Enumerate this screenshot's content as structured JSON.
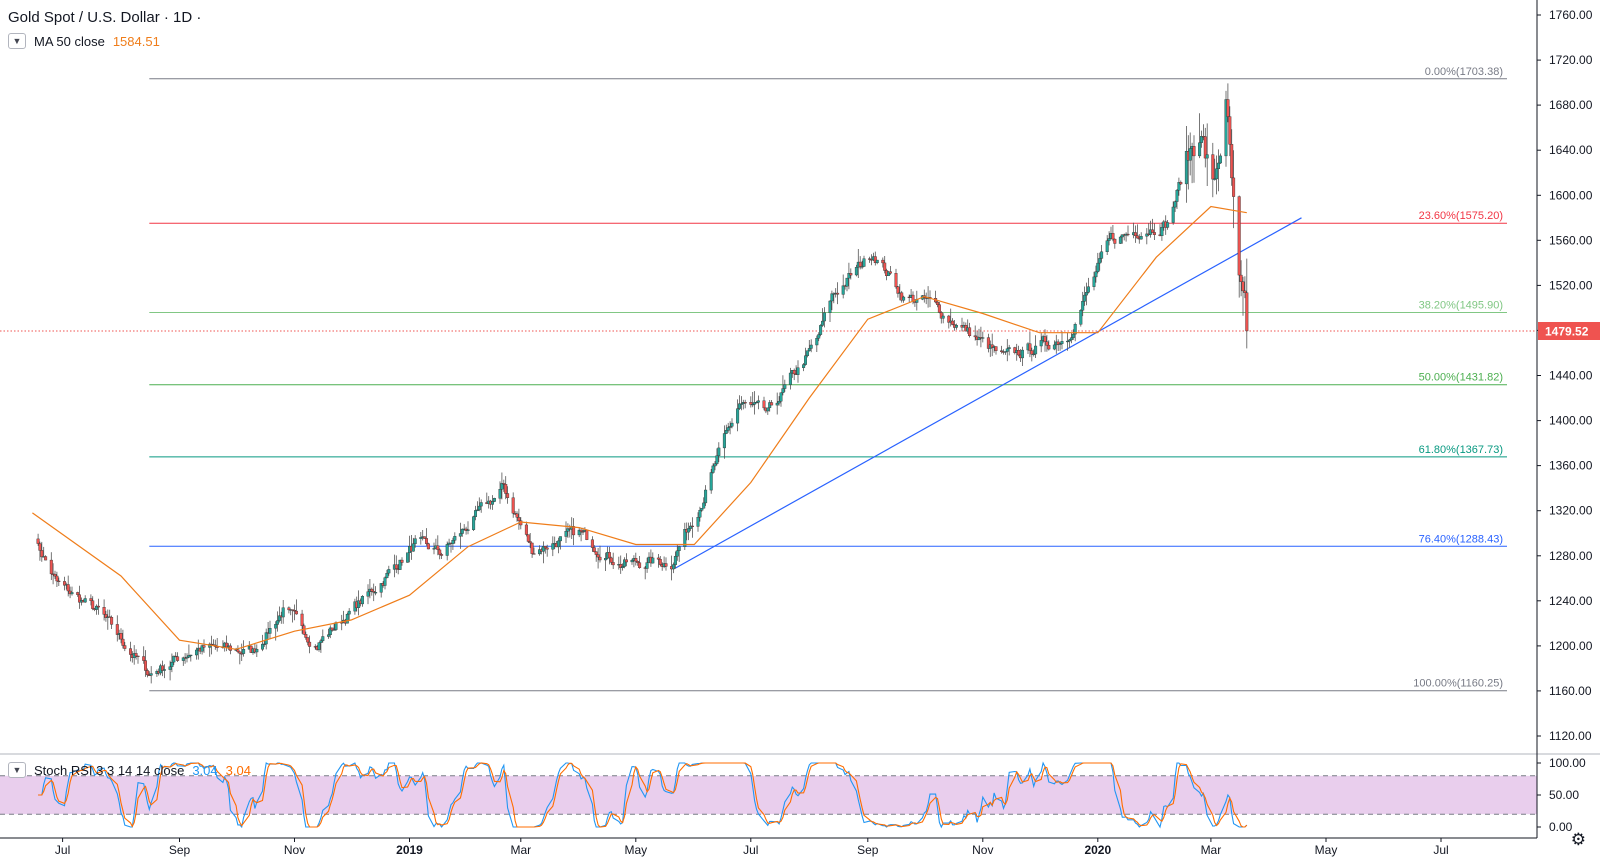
{
  "title": "Gold Spot / U.S. Dollar · 1D ·",
  "ma": {
    "label": "MA 50 close",
    "value": "1584.51",
    "color": "#ef7d1a"
  },
  "stoch": {
    "label": "Stoch RSI 3 3 14 14 close",
    "k": "3.04",
    "d": "3.04",
    "k_color": "#2196f3",
    "d_color": "#ff6d00",
    "band_color": "#e1bee7"
  },
  "current_price": "1479.52",
  "colors": {
    "up": "#26a69a",
    "down": "#ef5350",
    "trend": "#2962ff"
  },
  "chart_data": [
    {
      "type": "candlestick",
      "title": "Gold Spot / U.S. Dollar · 1D ·",
      "y_ticks": [
        "1760.00",
        "1720.00",
        "1680.00",
        "1640.00",
        "1600.00",
        "1560.00",
        "1520.00",
        "1480.00",
        "1440.00",
        "1400.00",
        "1360.00",
        "1320.00",
        "1280.00",
        "1240.00",
        "1200.00",
        "1160.00",
        "1120.00"
      ],
      "ylim": [
        1105,
        1765
      ],
      "x_ticks": [
        "Jul",
        "Sep",
        "Nov",
        "2019",
        "Mar",
        "May",
        "Jul",
        "Sep",
        "Nov",
        "2020",
        "Mar",
        "May",
        "Jul"
      ],
      "price_path": [
        {
          "date": "2018-06-15",
          "close": 1300
        },
        {
          "date": "2018-06-28",
          "close": 1255
        },
        {
          "date": "2018-07-20",
          "close": 1230
        },
        {
          "date": "2018-08-16",
          "close": 1175
        },
        {
          "date": "2018-09-10",
          "close": 1198
        },
        {
          "date": "2018-10-10",
          "close": 1195
        },
        {
          "date": "2018-10-26",
          "close": 1232
        },
        {
          "date": "2018-11-13",
          "close": 1202
        },
        {
          "date": "2018-12-10",
          "close": 1245
        },
        {
          "date": "2019-01-04",
          "close": 1290
        },
        {
          "date": "2019-01-18",
          "close": 1282
        },
        {
          "date": "2019-02-20",
          "close": 1340
        },
        {
          "date": "2019-03-07",
          "close": 1285
        },
        {
          "date": "2019-04-01",
          "close": 1300
        },
        {
          "date": "2019-04-23",
          "close": 1273
        },
        {
          "date": "2019-05-20",
          "close": 1275
        },
        {
          "date": "2019-06-05",
          "close": 1330
        },
        {
          "date": "2019-06-25",
          "close": 1415
        },
        {
          "date": "2019-07-10",
          "close": 1405
        },
        {
          "date": "2019-08-05",
          "close": 1470
        },
        {
          "date": "2019-08-13",
          "close": 1510
        },
        {
          "date": "2019-09-04",
          "close": 1550
        },
        {
          "date": "2019-09-20",
          "close": 1510
        },
        {
          "date": "2019-10-03",
          "close": 1505
        },
        {
          "date": "2019-11-12",
          "close": 1455
        },
        {
          "date": "2019-12-16",
          "close": 1475
        },
        {
          "date": "2020-01-08",
          "close": 1560
        },
        {
          "date": "2020-01-24",
          "close": 1570
        },
        {
          "date": "2020-02-07",
          "close": 1575
        },
        {
          "date": "2020-02-24",
          "close": 1665
        },
        {
          "date": "2020-03-02",
          "close": 1600
        },
        {
          "date": "2020-03-09",
          "close": 1680
        },
        {
          "date": "2020-03-16",
          "close": 1510
        },
        {
          "date": "2020-03-20",
          "close": 1479.52
        }
      ],
      "ma50": [
        {
          "date": "2018-06-15",
          "value": 1318
        },
        {
          "date": "2018-08-01",
          "value": 1262
        },
        {
          "date": "2018-09-01",
          "value": 1205
        },
        {
          "date": "2018-10-01",
          "value": 1197
        },
        {
          "date": "2018-11-01",
          "value": 1213
        },
        {
          "date": "2018-12-01",
          "value": 1223
        },
        {
          "date": "2019-01-01",
          "value": 1245
        },
        {
          "date": "2019-02-01",
          "value": 1288
        },
        {
          "date": "2019-03-01",
          "value": 1310
        },
        {
          "date": "2019-04-01",
          "value": 1305
        },
        {
          "date": "2019-05-01",
          "value": 1290
        },
        {
          "date": "2019-06-01",
          "value": 1290
        },
        {
          "date": "2019-07-01",
          "value": 1345
        },
        {
          "date": "2019-08-01",
          "value": 1420
        },
        {
          "date": "2019-09-01",
          "value": 1490
        },
        {
          "date": "2019-10-01",
          "value": 1510
        },
        {
          "date": "2019-11-01",
          "value": 1495
        },
        {
          "date": "2019-12-01",
          "value": 1478
        },
        {
          "date": "2020-01-01",
          "value": 1478
        },
        {
          "date": "2020-02-01",
          "value": 1545
        },
        {
          "date": "2020-03-01",
          "value": 1590
        },
        {
          "date": "2020-03-20",
          "value": 1584.51
        }
      ],
      "fib_levels": [
        {
          "label": "0.00%(1703.38)",
          "value": 1703.38,
          "color": "#787b86"
        },
        {
          "label": "23.60%(1575.20)",
          "value": 1575.2,
          "color": "#f23645"
        },
        {
          "label": "38.20%(1495.90)",
          "value": 1495.9,
          "color": "#81c784"
        },
        {
          "label": "50.00%(1431.82)",
          "value": 1431.82,
          "color": "#4caf50"
        },
        {
          "label": "61.80%(1367.73)",
          "value": 1367.73,
          "color": "#089981"
        },
        {
          "label": "76.40%(1288.43)",
          "value": 1288.43,
          "color": "#2962ff"
        },
        {
          "label": "100.00%(1160.25)",
          "value": 1160.25,
          "color": "#787b86"
        }
      ],
      "trendline": [
        {
          "date": "2019-05-22",
          "value": 1269
        },
        {
          "date": "2020-04-18",
          "value": 1580
        }
      ]
    },
    {
      "type": "line",
      "title": "Stoch RSI 3 3 14 14 close",
      "y_ticks": [
        "100.00",
        "50.00",
        "0.00"
      ],
      "ylim": [
        0,
        100
      ],
      "bands": [
        20,
        80
      ],
      "k_last": 3.04,
      "d_last": 3.04
    }
  ]
}
